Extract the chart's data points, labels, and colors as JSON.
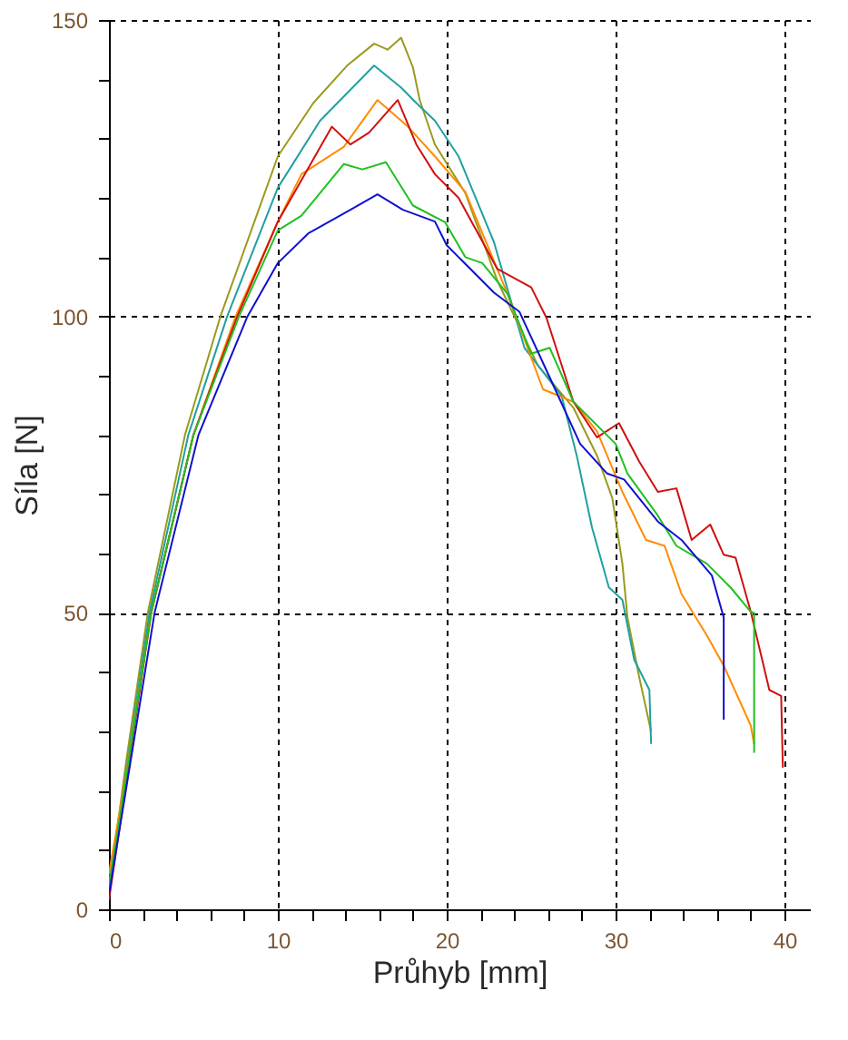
{
  "chart_data": {
    "type": "line",
    "xlabel": "Průhyb [mm]",
    "ylabel": "Síla [N]",
    "xlim": [
      0,
      41.5
    ],
    "ylim": [
      0,
      150
    ],
    "xticks": [
      0,
      {
        "value": 2,
        "label": null
      },
      {
        "value": 4,
        "label": null
      },
      {
        "value": 6,
        "label": null
      },
      {
        "value": 8,
        "label": null
      },
      10,
      {
        "value": 12,
        "label": null
      },
      {
        "value": 14,
        "label": null
      },
      {
        "value": 16,
        "label": null
      },
      {
        "value": 18,
        "label": null
      },
      20,
      {
        "value": 22,
        "label": null
      },
      {
        "value": 24,
        "label": null
      },
      {
        "value": 26,
        "label": null
      },
      {
        "value": 28,
        "label": null
      },
      30,
      {
        "value": 32,
        "label": null
      },
      {
        "value": 34,
        "label": null
      },
      {
        "value": 36,
        "label": null
      },
      {
        "value": 38,
        "label": null
      },
      40
    ],
    "yticks": [
      0,
      {
        "value": 10,
        "label": null
      },
      {
        "value": 20,
        "label": null
      },
      {
        "value": 30,
        "label": null
      },
      {
        "value": 40,
        "label": null
      },
      50,
      {
        "value": 60,
        "label": null
      },
      {
        "value": 70,
        "label": null
      },
      {
        "value": 80,
        "label": null
      },
      {
        "value": 90,
        "label": null
      },
      100,
      {
        "value": 110,
        "label": null
      },
      {
        "value": 120,
        "label": null
      },
      {
        "value": 130,
        "label": null
      },
      {
        "value": 140,
        "label": null
      },
      150
    ],
    "grid": true,
    "legend": false,
    "marker": "none",
    "line_style": "solid",
    "series": [
      {
        "color": "#9a9a1e",
        "x": [
          0,
          1,
          2.3,
          4.5,
          6.6,
          10,
          12.1,
          14.1,
          15.7,
          16.5,
          17.3,
          18,
          18.4,
          19.3,
          21.1,
          23,
          25.4,
          27.5,
          28.9,
          29.8,
          30.4,
          30.7,
          31.4,
          32.1
        ],
        "values": [
          3,
          24.5,
          50,
          80,
          100,
          127,
          136,
          142.3,
          146,
          145,
          147,
          142,
          136.5,
          129,
          120.8,
          106,
          91.7,
          84.6,
          76.5,
          69.4,
          58.3,
          49.2,
          39.1,
          30
        ]
      },
      {
        "color": "#20a0a0",
        "x": [
          0,
          1,
          2.4,
          4.7,
          7,
          10,
          12.5,
          15.7,
          17.3,
          18.2,
          19.3,
          20.7,
          22.8,
          24.6,
          26.8,
          27.7,
          28.6,
          29.6,
          30.4,
          31.1,
          32,
          32.1
        ],
        "values": [
          4.5,
          23,
          50,
          80,
          100,
          121.7,
          133,
          142.3,
          138.6,
          136,
          133,
          127,
          112.5,
          94.7,
          86.6,
          76.5,
          64.4,
          54.3,
          52.2,
          42.1,
          37,
          27.9
        ]
      },
      {
        "color": "#ff8c00",
        "x": [
          0,
          1,
          2.5,
          5,
          7.5,
          10,
          11.4,
          13.9,
          15.9,
          17.7,
          19.3,
          21.1,
          23.6,
          25.7,
          27.5,
          28.9,
          30.4,
          31.8,
          32.9,
          33.9,
          35.4,
          36.4,
          38,
          38.2
        ],
        "values": [
          6,
          22.5,
          50,
          80,
          100,
          116,
          124,
          128.6,
          136.5,
          132,
          127,
          121,
          103.8,
          87.7,
          85.6,
          80.6,
          70.4,
          62.3,
          61.3,
          53.2,
          46.2,
          41.1,
          31,
          27.9
        ]
      },
      {
        "color": "#d01010",
        "x": [
          0,
          1,
          2.5,
          5,
          7.6,
          10,
          13.2,
          14.3,
          15.4,
          17.1,
          18.2,
          19.3,
          20.7,
          23,
          25,
          25.9,
          27.5,
          28.9,
          30.2,
          31.4,
          32.5,
          33.6,
          34.5,
          35.6,
          36.4,
          37.1,
          38,
          39.1,
          39.8,
          39.9
        ],
        "values": [
          1.5,
          21,
          50,
          80,
          100,
          116,
          132,
          129,
          131,
          136.5,
          129,
          124,
          120,
          108,
          104.9,
          99.8,
          85.6,
          79.6,
          82,
          75.5,
          70.4,
          71,
          62.3,
          64.9,
          59.8,
          59.3,
          50.2,
          37,
          36,
          23.9
        ]
      },
      {
        "color": "#20c020",
        "x": [
          0,
          1,
          2.5,
          5,
          7.7,
          10,
          11.4,
          13.9,
          15,
          16.4,
          18,
          19.9,
          21.1,
          22.1,
          23.6,
          25,
          26.1,
          27.5,
          30,
          30.7,
          32.5,
          33.6,
          35.4,
          36.8,
          38,
          38.2,
          38.2
        ],
        "values": [
          3.5,
          22,
          50,
          80,
          100,
          114.5,
          117,
          125.7,
          124.8,
          126,
          118.7,
          115.9,
          110,
          109,
          103.8,
          93.7,
          94.7,
          85.6,
          78.5,
          73.5,
          66.4,
          61.3,
          58.3,
          54.3,
          50.2,
          50,
          26.4
        ]
      },
      {
        "color": "#1010d0",
        "x": [
          0,
          1,
          2.7,
          5.3,
          8.2,
          10,
          11.8,
          14.3,
          15.9,
          17.4,
          19.3,
          20,
          20.7,
          22.8,
          24.3,
          26.1,
          27.9,
          29.5,
          30.5,
          32.5,
          33.9,
          35.7,
          36.4,
          36.4
        ],
        "values": [
          2.5,
          20,
          50,
          80,
          100,
          109,
          114,
          118,
          120.6,
          118,
          116,
          112,
          110,
          104,
          100.8,
          89.7,
          78.5,
          73.5,
          72.5,
          65.4,
          62.3,
          56.3,
          49.2,
          32
        ]
      }
    ]
  }
}
